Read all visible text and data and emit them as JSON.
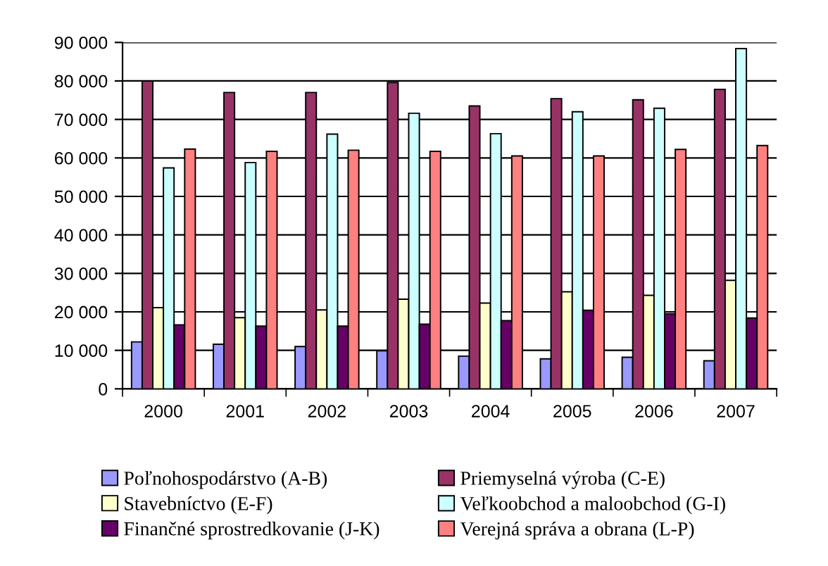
{
  "chart_data": {
    "type": "bar",
    "categories": [
      "2000",
      "2001",
      "2002",
      "2003",
      "2004",
      "2005",
      "2006",
      "2007"
    ],
    "series": [
      {
        "name": "Poľnohospodárstvo (A-B)",
        "color": "#9999ff",
        "values": [
          12200,
          11600,
          11000,
          9900,
          8500,
          7800,
          8200,
          7300
        ]
      },
      {
        "name": "Priemyselná výroba (C-E)",
        "color": "#993366",
        "values": [
          80000,
          77000,
          77000,
          79600,
          73500,
          75400,
          75100,
          77800
        ]
      },
      {
        "name": "Stavebníctvo (E-F)",
        "color": "#ffffcc",
        "values": [
          21100,
          18500,
          20500,
          23300,
          22300,
          25200,
          24300,
          28200
        ]
      },
      {
        "name": "Veľkoobchod a maloobchod (G-I)",
        "color": "#ccffff",
        "values": [
          57400,
          58800,
          66200,
          71600,
          66300,
          72000,
          72900,
          88400
        ]
      },
      {
        "name": "Finančné sprostredkovanie (J-K)",
        "color": "#660066",
        "values": [
          16600,
          16300,
          16300,
          16800,
          17700,
          20400,
          19500,
          18400
        ]
      },
      {
        "name": "Verejná správa a obrana (L-P)",
        "color": "#ff8080",
        "values": [
          62300,
          61700,
          62000,
          61700,
          60500,
          60500,
          62200,
          63200
        ]
      }
    ],
    "ylim": [
      0,
      90000
    ],
    "yticks": [
      0,
      {
        "value": 10000,
        "label": "10 000"
      },
      {
        "value": 20000,
        "label": "20 000"
      },
      {
        "value": 30000,
        "label": "30 000"
      },
      {
        "value": 40000,
        "label": "40 000"
      },
      {
        "value": 50000,
        "label": "50 000"
      },
      {
        "value": 60000,
        "label": "60 000"
      },
      {
        "value": 70000,
        "label": "70 000"
      },
      {
        "value": 80000,
        "label": "80 000"
      },
      {
        "value": 90000,
        "label": "90 000"
      }
    ],
    "grid": "y",
    "legend": "bottom"
  }
}
